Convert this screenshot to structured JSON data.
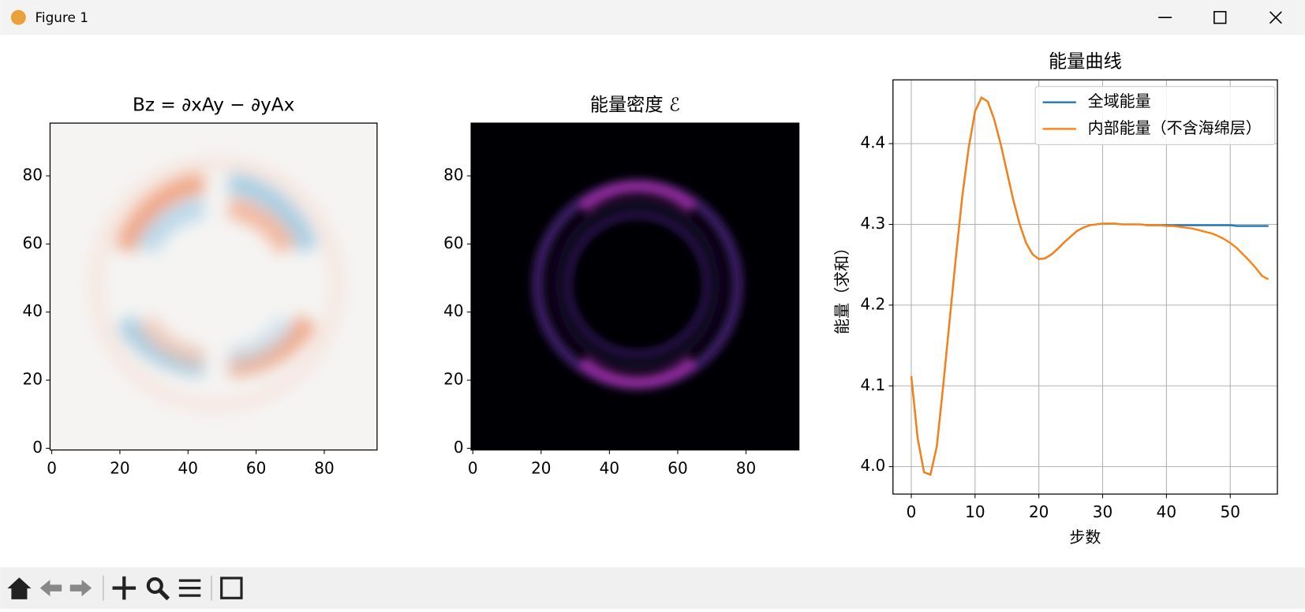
{
  "window": {
    "title": "Figure 1"
  },
  "chart_data": [
    {
      "type": "heatmap",
      "title": "Bz = ∂xAy − ∂yAx",
      "xlim": [
        -0.5,
        95.5
      ],
      "ylim": [
        -0.5,
        95.5
      ],
      "xticks": [
        0,
        20,
        40,
        60,
        80
      ],
      "yticks": [
        0,
        20,
        40,
        60,
        80
      ]
    },
    {
      "type": "heatmap",
      "title": "能量密度 ℰ",
      "xlim": [
        -0.5,
        95.5
      ],
      "ylim": [
        -0.5,
        95.5
      ],
      "xticks": [
        0,
        20,
        40,
        60,
        80
      ],
      "yticks": [
        0,
        20,
        40,
        60,
        80
      ]
    },
    {
      "type": "line",
      "title": "能量曲线",
      "x_label": "步数",
      "y_label": "能量（求和）",
      "x": [
        0,
        1,
        2,
        3,
        4,
        5,
        6,
        7,
        8,
        9,
        10,
        11,
        12,
        13,
        14,
        15,
        16,
        17,
        18,
        19,
        20,
        21,
        22,
        23,
        24,
        25,
        26,
        27,
        28,
        29,
        30,
        31,
        32,
        33,
        34,
        35,
        36,
        37,
        38,
        39,
        40,
        41,
        42,
        43,
        44,
        45,
        46,
        47,
        48,
        49,
        50,
        51,
        52,
        53,
        54,
        55,
        56
      ],
      "series": [
        {
          "name": "全域能量",
          "color": "#1f77b4",
          "values": [
            4.112,
            4.035,
            3.993,
            3.99,
            4.025,
            4.1,
            4.18,
            4.26,
            4.335,
            4.395,
            4.44,
            4.457,
            4.452,
            4.43,
            4.4,
            4.365,
            4.33,
            4.3,
            4.277,
            4.263,
            4.257,
            4.258,
            4.263,
            4.27,
            4.278,
            4.285,
            4.292,
            4.296,
            4.299,
            4.3,
            4.301,
            4.301,
            4.301,
            4.3,
            4.3,
            4.3,
            4.3,
            4.299,
            4.299,
            4.299,
            4.299,
            4.299,
            4.299,
            4.299,
            4.299,
            4.299,
            4.299,
            4.299,
            4.299,
            4.299,
            4.299,
            4.298,
            4.298,
            4.298,
            4.298,
            4.298,
            4.298
          ]
        },
        {
          "name": "内部能量（不含海绵层）",
          "color": "#ff7f0e",
          "values": [
            4.112,
            4.035,
            3.993,
            3.99,
            4.025,
            4.1,
            4.18,
            4.26,
            4.335,
            4.395,
            4.44,
            4.457,
            4.452,
            4.43,
            4.4,
            4.365,
            4.33,
            4.3,
            4.277,
            4.263,
            4.257,
            4.258,
            4.263,
            4.27,
            4.278,
            4.285,
            4.292,
            4.296,
            4.299,
            4.3,
            4.301,
            4.301,
            4.301,
            4.3,
            4.3,
            4.3,
            4.3,
            4.299,
            4.299,
            4.299,
            4.298,
            4.298,
            4.297,
            4.296,
            4.295,
            4.293,
            4.291,
            4.289,
            4.286,
            4.282,
            4.277,
            4.271,
            4.263,
            4.255,
            4.246,
            4.236,
            4.232
          ]
        }
      ],
      "xlim": [
        -2.87,
        57.4
      ],
      "ylim": [
        3.966,
        4.479
      ],
      "xticks": [
        0,
        10,
        20,
        30,
        40,
        50
      ],
      "yticks": [
        4.0,
        4.1,
        4.2,
        4.3,
        4.4
      ],
      "grid": true,
      "legend": "upper right"
    }
  ]
}
